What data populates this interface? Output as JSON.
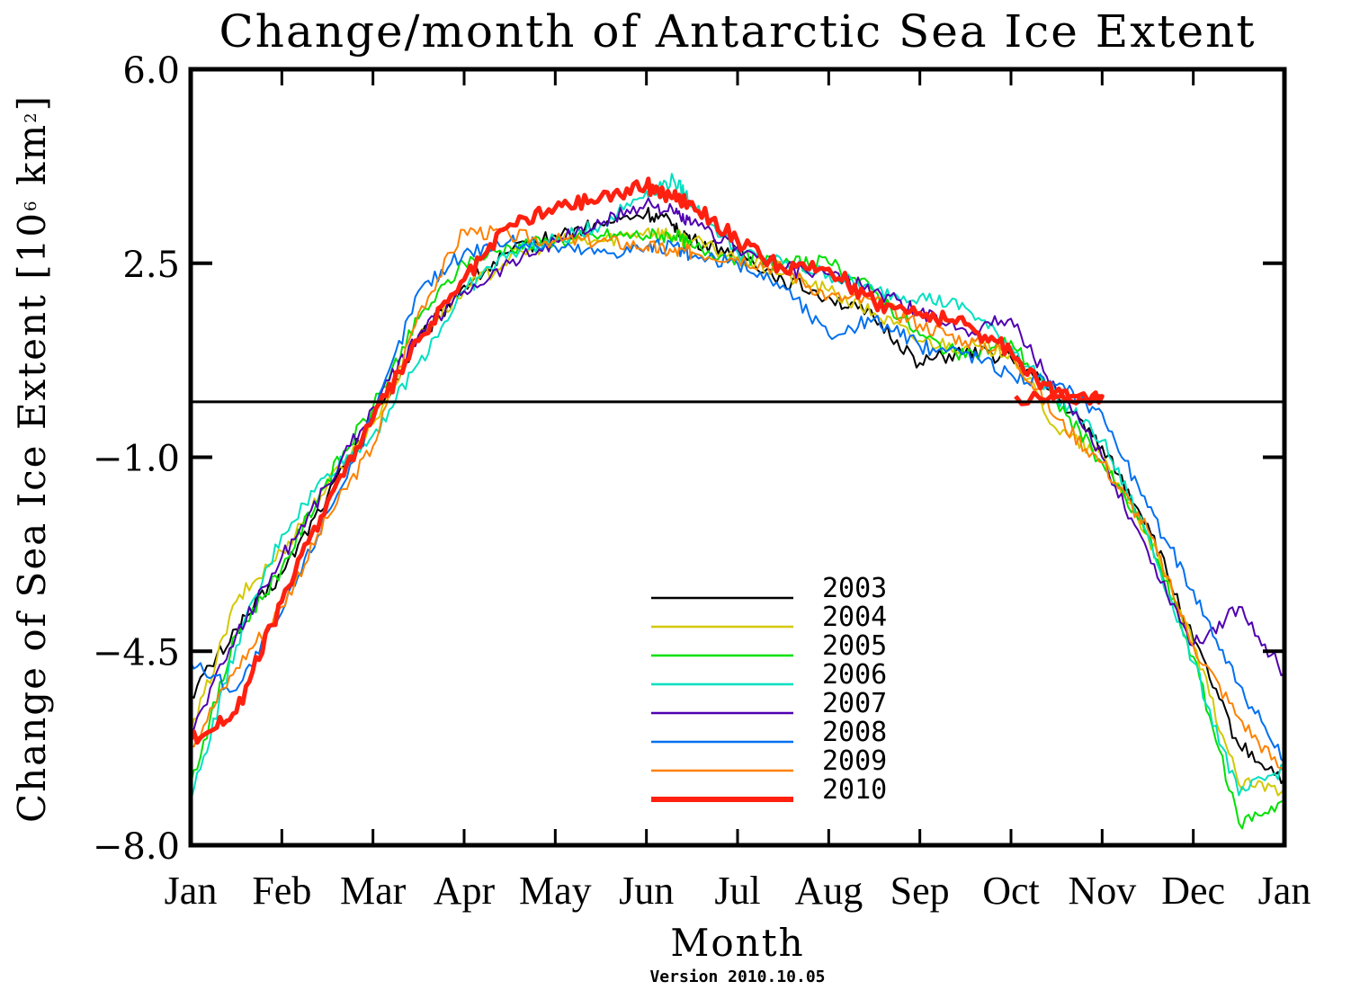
{
  "chart_data": {
    "type": "line",
    "title": "Change/month of Antarctic Sea Ice Extent",
    "xlabel": "Month",
    "ylabel": "Change of Sea Ice Extent [10^6 km^2]",
    "ylabel_parts": {
      "main": "Change of Sea Ice Extent [10",
      "exp": "6",
      "unit": " km",
      "unit_exp": "2",
      "close": "]"
    },
    "footnote": "Version 2010.10.05",
    "ylim": [
      -8.0,
      6.0
    ],
    "yticks": [
      6.0,
      2.5,
      -1.0,
      -4.5,
      -8.0
    ],
    "ytick_labels": [
      "6.0",
      "2.5",
      "−1.0",
      "−4.5",
      "−8.0"
    ],
    "xlim": [
      0,
      12
    ],
    "xticks": [
      0,
      1,
      2,
      3,
      4,
      5,
      6,
      7,
      8,
      9,
      10,
      11,
      12
    ],
    "xtick_labels": [
      "Jan",
      "Feb",
      "Mar",
      "Apr",
      "May",
      "Jun",
      "Jul",
      "Aug",
      "Sep",
      "Oct",
      "Nov",
      "Dec",
      "Jan"
    ],
    "reference_line": 0.0,
    "grid": false,
    "legend_position": "lower-center",
    "x": [
      0,
      0.5,
      1,
      1.5,
      2,
      2.5,
      3,
      3.5,
      4,
      4.5,
      5,
      5.3,
      5.5,
      6,
      6.5,
      7,
      7.5,
      8,
      8.5,
      9,
      9.5,
      10,
      10.5,
      11,
      11.5,
      12
    ],
    "series": [
      {
        "name": "2003",
        "color": "#000000",
        "width": 2,
        "values": [
          -5.3,
          -4.1,
          -3.1,
          -1.7,
          -0.3,
          1.1,
          2.1,
          2.7,
          3.0,
          3.2,
          3.4,
          3.2,
          2.9,
          2.7,
          2.2,
          1.9,
          1.5,
          0.7,
          0.9,
          0.8,
          0.1,
          -0.8,
          -2.2,
          -4.3,
          -6.2,
          -6.8
        ]
      },
      {
        "name": "2004",
        "color": "#d4c800",
        "width": 2,
        "values": [
          -6.0,
          -3.6,
          -2.7,
          -1.5,
          -0.4,
          1.2,
          2.0,
          2.6,
          2.9,
          2.9,
          3.1,
          3.0,
          2.9,
          2.6,
          2.3,
          2.0,
          1.6,
          1.1,
          1.0,
          0.9,
          -0.5,
          -1.0,
          -2.4,
          -4.4,
          -6.9,
          -7.0
        ]
      },
      {
        "name": "2005",
        "color": "#00e000",
        "width": 2,
        "values": [
          -6.9,
          -4.2,
          -3.0,
          -1.4,
          -0.1,
          1.5,
          2.5,
          2.8,
          2.9,
          3.0,
          3.0,
          3.0,
          2.8,
          2.6,
          2.5,
          2.5,
          2.0,
          1.2,
          0.8,
          1.1,
          0.0,
          -1.1,
          -2.4,
          -4.6,
          -7.6,
          -7.2
        ]
      },
      {
        "name": "2006",
        "color": "#00e0c0",
        "width": 2,
        "values": [
          -7.2,
          -4.4,
          -2.4,
          -1.3,
          -0.6,
          0.7,
          2.0,
          2.7,
          2.9,
          3.2,
          3.8,
          4.0,
          3.6,
          2.7,
          2.5,
          2.3,
          2.0,
          1.9,
          1.7,
          1.0,
          0.1,
          -0.7,
          -2.4,
          -4.7,
          -7.1,
          -6.6
        ]
      },
      {
        "name": "2007",
        "color": "#5000b0",
        "width": 2,
        "values": [
          -6.0,
          -4.2,
          -2.8,
          -1.5,
          -0.1,
          1.2,
          2.0,
          2.5,
          2.9,
          3.2,
          3.6,
          3.4,
          3.2,
          2.8,
          2.4,
          2.3,
          2.0,
          1.6,
          1.3,
          1.5,
          0.2,
          -1.0,
          -2.7,
          -4.4,
          -3.7,
          -4.9
        ]
      },
      {
        "name": "2008",
        "color": "#0070f0",
        "width": 2,
        "values": [
          -4.7,
          -5.2,
          -3.8,
          -2.0,
          -0.3,
          2.0,
          2.7,
          2.9,
          2.8,
          2.7,
          2.8,
          2.8,
          2.6,
          2.5,
          2.1,
          1.2,
          1.5,
          1.0,
          0.9,
          0.5,
          0.3,
          -0.2,
          -1.9,
          -3.4,
          -5.1,
          -6.5
        ]
      },
      {
        "name": "2009",
        "color": "#ff8000",
        "width": 2,
        "values": [
          -6.2,
          -4.8,
          -3.7,
          -2.1,
          -0.8,
          1.6,
          3.1,
          3.0,
          2.9,
          2.9,
          2.8,
          2.7,
          2.7,
          2.6,
          2.4,
          1.9,
          1.8,
          1.4,
          1.1,
          0.9,
          -0.3,
          -1.1,
          -2.3,
          -4.4,
          -5.7,
          -6.7
        ]
      },
      {
        "name": "2010",
        "color": "#ff2010",
        "width": 5,
        "values": [
          -6.1,
          -5.6,
          -3.6,
          -1.8,
          -0.3,
          1.1,
          2.2,
          3.2,
          3.5,
          3.7,
          3.9,
          3.7,
          3.6,
          2.9,
          2.4,
          2.4,
          1.8,
          1.6,
          1.4,
          0.9,
          0.1,
          0.1,
          null,
          null,
          null,
          null
        ]
      }
    ],
    "series_end_x": {
      "2010": 9.05
    }
  }
}
